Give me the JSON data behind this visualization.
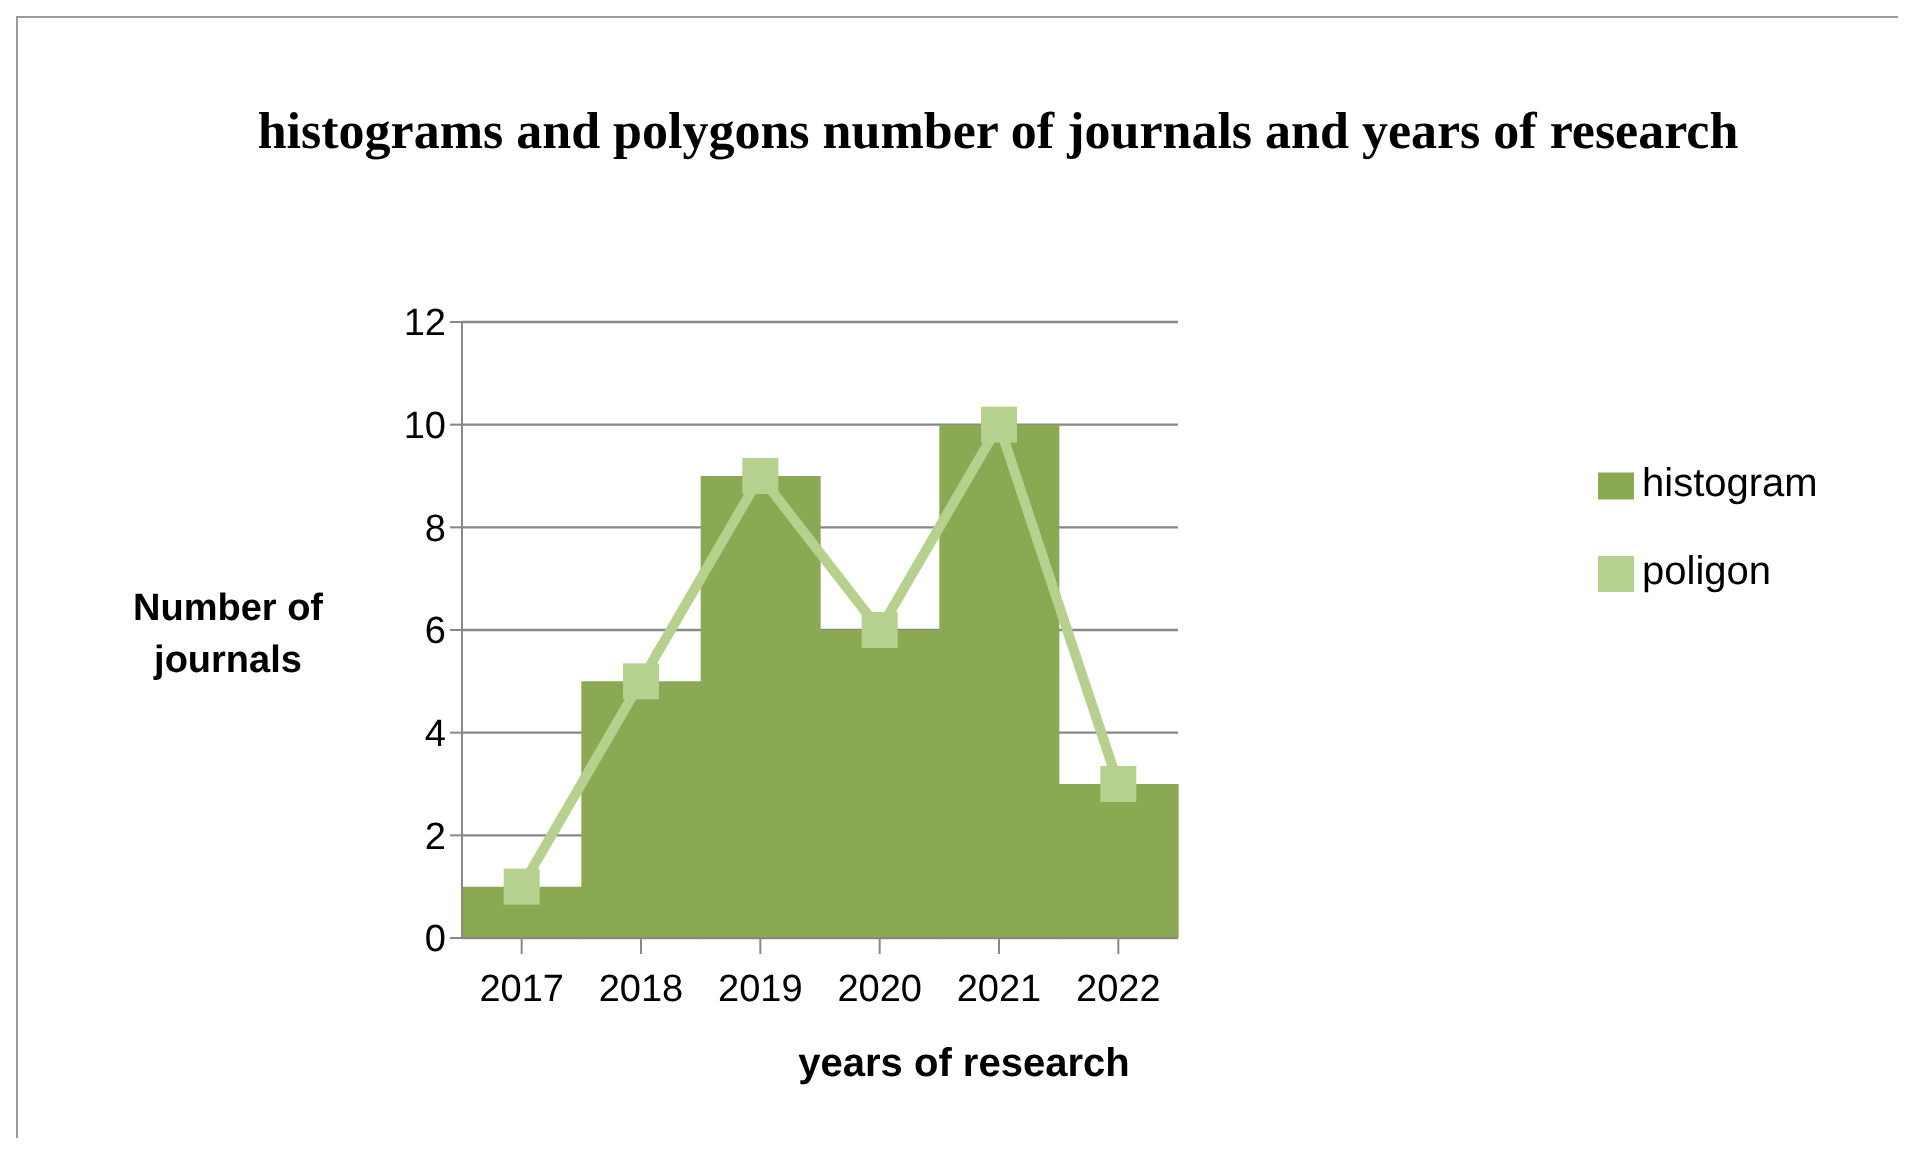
{
  "chart_data": {
    "type": "bar",
    "title": "histograms and polygons number of journals and years of research",
    "xlabel": "years of research",
    "ylabel": "Number of journals",
    "categories": [
      "2017",
      "2018",
      "2019",
      "2020",
      "2021",
      "2022"
    ],
    "series": [
      {
        "name": "histogram",
        "color": "#8aa952",
        "values": [
          1,
          5,
          9,
          6,
          10,
          3
        ]
      },
      {
        "name": "poligon",
        "type": "line",
        "color": "#b6d08e",
        "values": [
          1,
          5,
          9,
          6,
          10,
          3
        ],
        "marker": "square"
      }
    ],
    "ylim": [
      0,
      12
    ],
    "yticks": [
      0,
      2,
      4,
      6,
      8,
      10,
      12
    ],
    "grid": "y",
    "legend": "right"
  }
}
